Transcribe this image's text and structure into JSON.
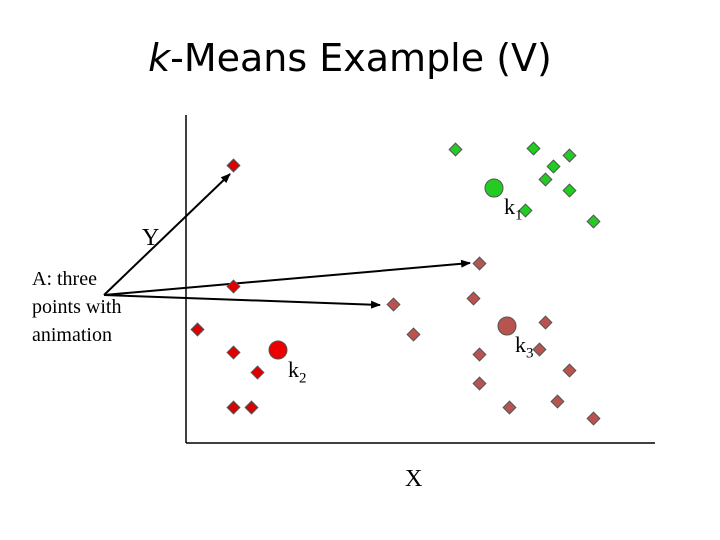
{
  "title": {
    "prefix": "k",
    "rest": "-Means Example (V)"
  },
  "axes": {
    "y_label": "Y",
    "x_label": "X"
  },
  "annotation": {
    "lines": [
      "A: three",
      "points with",
      "animation"
    ]
  },
  "centroids": [
    {
      "name": "k",
      "sub": "1",
      "color": "#22cc22"
    },
    {
      "name": "k",
      "sub": "2",
      "color": "#ee0000"
    },
    {
      "name": "k",
      "sub": "3",
      "color": "#b85450"
    }
  ],
  "colors": {
    "cluster1": "#22cc22",
    "cluster2": "#dd0000",
    "cluster3": "#b85450",
    "outline": "#555555",
    "axis": "#000000"
  }
}
